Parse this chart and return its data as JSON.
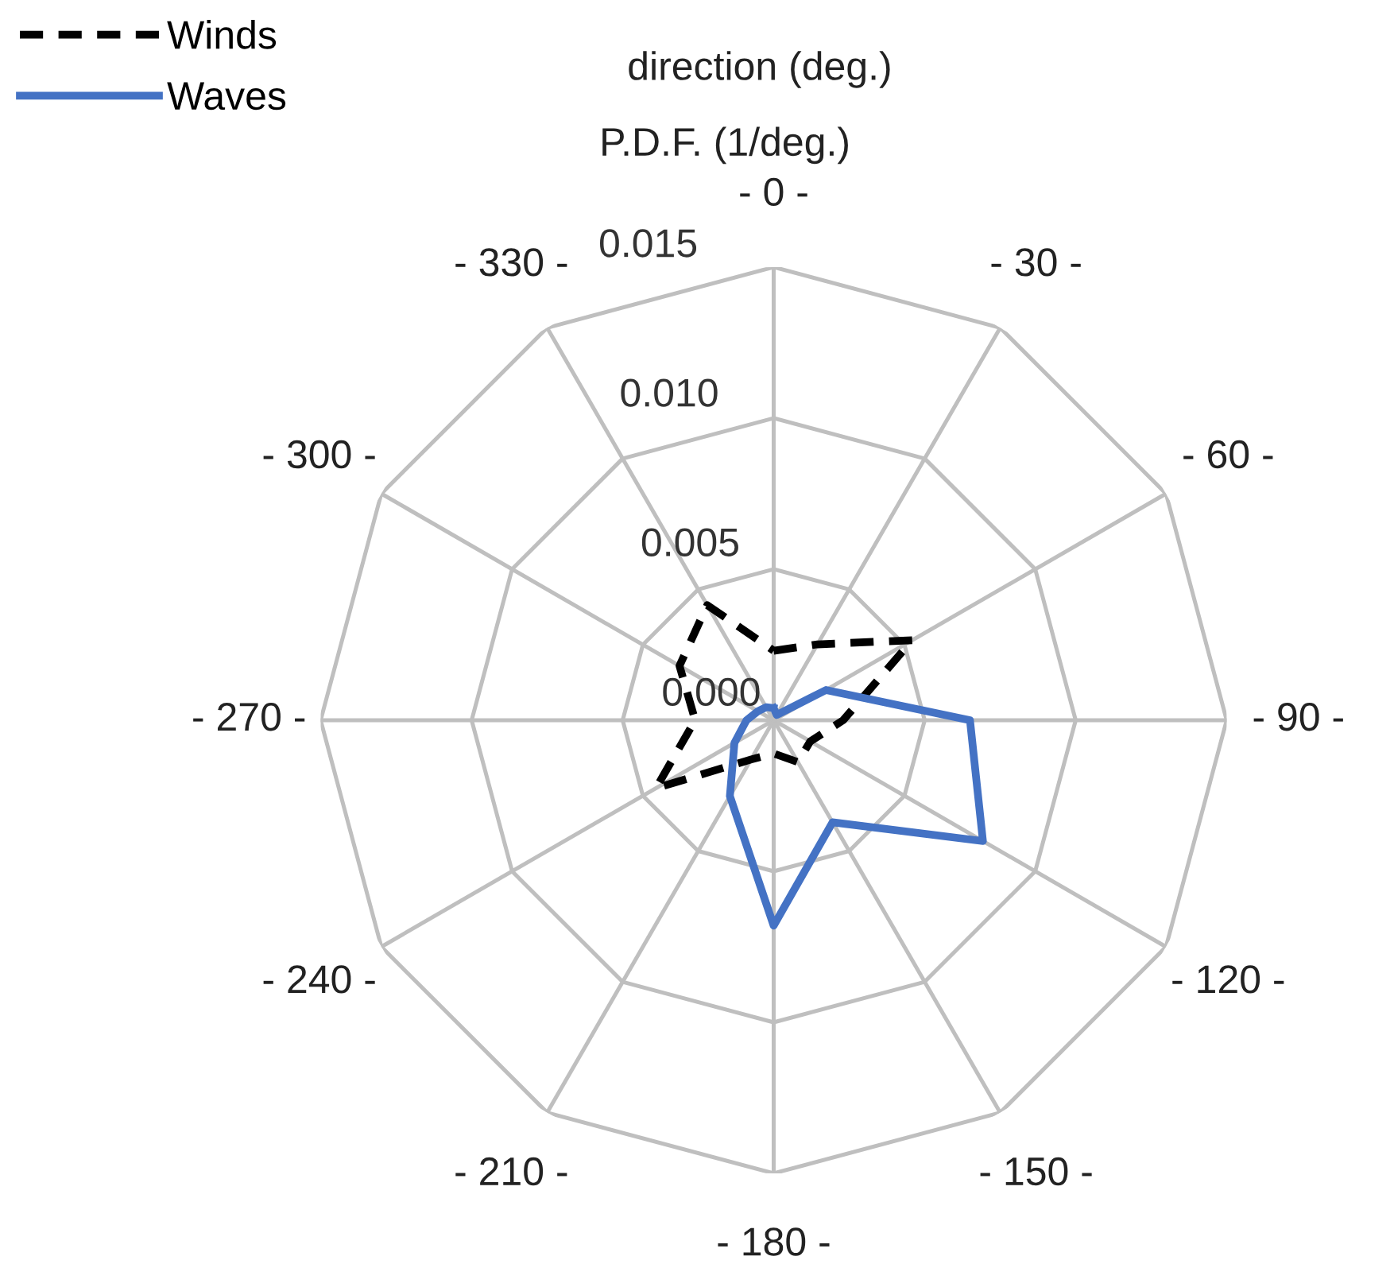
{
  "chart_data": {
    "type": "radar",
    "title": "direction (deg.)",
    "subtitle": "P.D.F. (1/deg.)",
    "categories": [
      "- 0 -",
      "- 30 -",
      "- 60 -",
      "- 90 -",
      "- 120 -",
      "- 150 -",
      "- 180 -",
      "- 210 -",
      "- 240 -",
      "- 270 -",
      "- 300 -",
      "- 330 -"
    ],
    "series": [
      {
        "name": "Winds",
        "color": "#000000",
        "line_style": "dashed",
        "values": [
          0.0023,
          0.0029,
          0.0053,
          0.0023,
          0.0014,
          0.0016,
          0.0011,
          0.0015,
          0.0045,
          0.0026,
          0.0036,
          0.0044
        ]
      },
      {
        "name": "Waves",
        "color": "#4472c4",
        "line_style": "solid",
        "values": [
          0.0004,
          0.0002,
          0.002,
          0.0065,
          0.008,
          0.0039,
          0.0068,
          0.0029,
          0.0015,
          0.0009,
          0.0006,
          0.0005
        ]
      }
    ],
    "ylim": [
      0,
      0.015
    ],
    "yticks": [
      {
        "value": 0,
        "label": "0.000"
      },
      {
        "value": 0.005,
        "label": "0.005"
      },
      {
        "value": 0.01,
        "label": "0.010"
      },
      {
        "value": 0.015,
        "label": "0.015"
      }
    ],
    "grid": true,
    "legend": "top left",
    "marker": "none"
  }
}
